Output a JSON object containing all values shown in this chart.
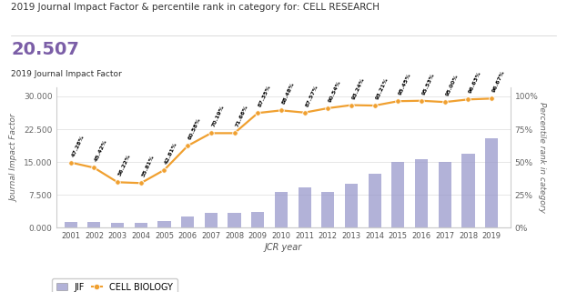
{
  "title": "2019 Journal Impact Factor & percentile rank in category for: CELL RESEARCH",
  "subtitle_value": "20.507",
  "subtitle_label": "2019 Journal Impact Factor",
  "xlabel": "JCR year",
  "ylabel_left": "Journal Impact Factor",
  "ylabel_right": "Percentile rank in category",
  "years": [
    2001,
    2002,
    2003,
    2004,
    2005,
    2006,
    2007,
    2008,
    2009,
    2010,
    2011,
    2012,
    2013,
    2014,
    2015,
    2016,
    2017,
    2018,
    2019
  ],
  "jif_values": [
    1.3,
    1.3,
    1.1,
    1.2,
    1.6,
    2.5,
    3.3,
    3.5,
    3.6,
    8.2,
    9.2,
    8.2,
    10.0,
    12.4,
    15.1,
    15.6,
    15.0,
    17.0,
    20.507
  ],
  "percentile_values": [
    "47.28%",
    "45.42%",
    "36.22%",
    "35.81%",
    "42.81%",
    "60.58%",
    "70.19%",
    "71.66%",
    "87.35%",
    "88.48%",
    "87.57%",
    "90.54%",
    "93.24%",
    "93.21%",
    "95.45%",
    "95.53%",
    "95.00%",
    "96.63%",
    "96.67%"
  ],
  "percentile_numeric": [
    47.28,
    45.42,
    36.22,
    35.81,
    42.81,
    60.58,
    70.19,
    71.66,
    87.35,
    88.48,
    87.57,
    90.54,
    93.24,
    93.21,
    95.45,
    95.53,
    95.0,
    96.63,
    96.67
  ],
  "pct_line_y": [
    14.9,
    13.7,
    10.4,
    10.2,
    13.2,
    18.7,
    21.6,
    21.6,
    26.2,
    26.8,
    26.3,
    27.3,
    28.0,
    27.9,
    28.9,
    29.0,
    28.7,
    29.3,
    29.5
  ],
  "bar_color": "#9999cc",
  "line_color": "#f0a030",
  "title_color": "#333333",
  "subtitle_color": "#7b5ea7",
  "background_color": "#ffffff",
  "ytick_labels_left": [
    "0.000",
    "7.500",
    "15.000",
    "22.500",
    "30.000"
  ],
  "ytick_vals_left": [
    0.0,
    7.5,
    15.0,
    22.5,
    30.0
  ],
  "ytick_labels_right": [
    "0%",
    "25%",
    "50%",
    "75%",
    "100%"
  ]
}
